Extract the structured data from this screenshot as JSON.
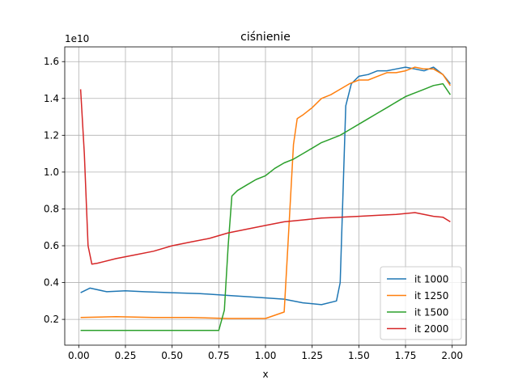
{
  "chart_data": {
    "type": "line",
    "title": "ciśnienie",
    "xlabel": "x",
    "ylabel": "",
    "y_multiplier_label": "1e10",
    "xlim": [
      -0.075,
      2.075
    ],
    "ylim": [
      0.06,
      1.68
    ],
    "xticks": [
      0.0,
      0.25,
      0.5,
      0.75,
      1.0,
      1.25,
      1.5,
      1.75,
      2.0
    ],
    "xtick_labels": [
      "0.00",
      "0.25",
      "0.50",
      "0.75",
      "1.00",
      "1.25",
      "1.50",
      "1.75",
      "2.00"
    ],
    "yticks": [
      0.2,
      0.4,
      0.6,
      0.8,
      1.0,
      1.2,
      1.4,
      1.6
    ],
    "ytick_labels": [
      "0.2",
      "0.4",
      "0.6",
      "0.8",
      "1.0",
      "1.2",
      "1.4",
      "1.6"
    ],
    "grid": true,
    "legend_position": "lower right",
    "series": [
      {
        "name": "it 1000",
        "color": "#1f77b4",
        "x": [
          0.01,
          0.06,
          0.15,
          0.25,
          0.35,
          0.5,
          0.65,
          0.8,
          0.95,
          1.1,
          1.2,
          1.3,
          1.38,
          1.4,
          1.43,
          1.46,
          1.5,
          1.55,
          1.6,
          1.65,
          1.7,
          1.75,
          1.8,
          1.85,
          1.9,
          1.95,
          1.99
        ],
        "y": [
          0.345,
          0.37,
          0.35,
          0.355,
          0.35,
          0.345,
          0.34,
          0.33,
          0.32,
          0.31,
          0.29,
          0.28,
          0.3,
          0.4,
          1.36,
          1.48,
          1.52,
          1.53,
          1.55,
          1.55,
          1.56,
          1.57,
          1.56,
          1.55,
          1.57,
          1.53,
          1.48
        ]
      },
      {
        "name": "it 1250",
        "color": "#ff7f0e",
        "x": [
          0.01,
          0.2,
          0.4,
          0.6,
          0.8,
          1.0,
          1.1,
          1.12,
          1.15,
          1.17,
          1.2,
          1.25,
          1.3,
          1.35,
          1.4,
          1.45,
          1.5,
          1.55,
          1.6,
          1.65,
          1.7,
          1.75,
          1.8,
          1.85,
          1.9,
          1.95,
          1.99
        ],
        "y": [
          0.21,
          0.215,
          0.21,
          0.21,
          0.205,
          0.205,
          0.24,
          0.6,
          1.15,
          1.29,
          1.31,
          1.35,
          1.4,
          1.42,
          1.45,
          1.48,
          1.5,
          1.5,
          1.52,
          1.54,
          1.54,
          1.55,
          1.57,
          1.56,
          1.56,
          1.53,
          1.47
        ]
      },
      {
        "name": "it 1500",
        "color": "#2ca02c",
        "x": [
          0.01,
          0.2,
          0.4,
          0.6,
          0.75,
          0.78,
          0.8,
          0.82,
          0.85,
          0.9,
          0.95,
          1.0,
          1.05,
          1.1,
          1.15,
          1.2,
          1.25,
          1.3,
          1.35,
          1.4,
          1.45,
          1.5,
          1.55,
          1.6,
          1.65,
          1.7,
          1.75,
          1.8,
          1.85,
          1.9,
          1.95,
          1.99
        ],
        "y": [
          0.14,
          0.14,
          0.14,
          0.14,
          0.14,
          0.25,
          0.6,
          0.87,
          0.9,
          0.93,
          0.96,
          0.98,
          1.02,
          1.05,
          1.07,
          1.1,
          1.13,
          1.16,
          1.18,
          1.2,
          1.23,
          1.26,
          1.29,
          1.32,
          1.35,
          1.38,
          1.41,
          1.43,
          1.45,
          1.47,
          1.48,
          1.42
        ]
      },
      {
        "name": "it 2000",
        "color": "#d62728",
        "x": [
          0.01,
          0.03,
          0.05,
          0.07,
          0.1,
          0.2,
          0.3,
          0.4,
          0.5,
          0.6,
          0.7,
          0.8,
          0.9,
          1.0,
          1.1,
          1.2,
          1.3,
          1.4,
          1.5,
          1.6,
          1.7,
          1.8,
          1.9,
          1.95,
          1.99
        ],
        "y": [
          1.45,
          1.1,
          0.6,
          0.5,
          0.505,
          0.53,
          0.55,
          0.57,
          0.6,
          0.62,
          0.64,
          0.67,
          0.69,
          0.71,
          0.73,
          0.74,
          0.75,
          0.755,
          0.76,
          0.765,
          0.77,
          0.78,
          0.76,
          0.755,
          0.73
        ]
      }
    ]
  }
}
